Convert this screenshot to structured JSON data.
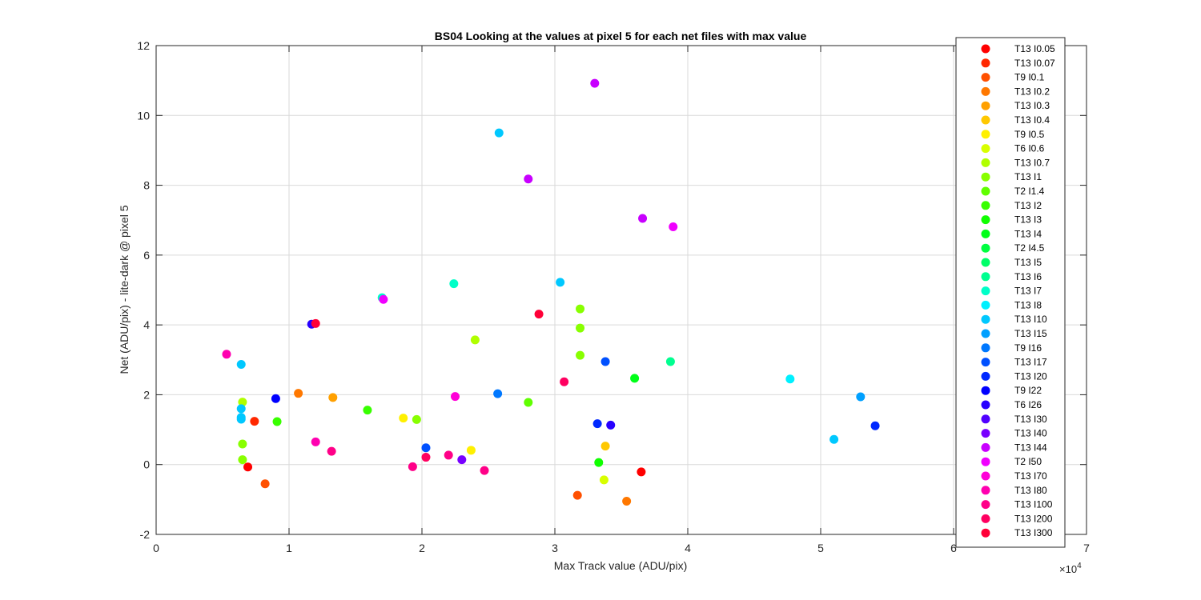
{
  "chart_data": {
    "type": "scatter",
    "title": "BS04  Looking at the values at pixel 5 for each net files with max value",
    "xlabel": "Max Track value (ADU/pix)",
    "ylabel": "Net (ADU/pix) - lite-dark @ pixel 5",
    "x_multiplier_label": "×10",
    "x_multiplier_exp": "4",
    "x_scale": 10000,
    "xlim": [
      0,
      70000
    ],
    "ylim": [
      -2,
      12
    ],
    "x_ticks": [
      0,
      10000,
      20000,
      30000,
      40000,
      50000,
      60000,
      70000
    ],
    "x_tick_labels": [
      "0",
      "1",
      "2",
      "3",
      "4",
      "5",
      "6",
      "7"
    ],
    "y_ticks": [
      -2,
      0,
      2,
      4,
      6,
      8,
      10,
      12
    ],
    "y_tick_labels": [
      "-2",
      "0",
      "2",
      "4",
      "6",
      "8",
      "10",
      "12"
    ],
    "grid": true,
    "legend_position": "right",
    "series": [
      {
        "name": "T13 I0.05",
        "color": "#ff0000",
        "points": [
          [
            6900,
            -0.07
          ],
          [
            36500,
            -0.21
          ]
        ]
      },
      {
        "name": "T13 I0.07",
        "color": "#ff2800",
        "points": [
          [
            7400,
            1.24
          ]
        ]
      },
      {
        "name": "T9 I0.1",
        "color": "#ff5000",
        "points": [
          [
            8200,
            -0.55
          ],
          [
            31700,
            -0.88
          ]
        ]
      },
      {
        "name": "T13 I0.2",
        "color": "#ff7800",
        "points": [
          [
            10700,
            2.04
          ],
          [
            35400,
            -1.05
          ]
        ]
      },
      {
        "name": "T13 I0.3",
        "color": "#ffa000",
        "points": [
          [
            13300,
            1.92
          ]
        ]
      },
      {
        "name": "T13 I0.4",
        "color": "#ffc800",
        "points": [
          [
            33800,
            0.53
          ]
        ]
      },
      {
        "name": "T9 I0.5",
        "color": "#fff000",
        "points": [
          [
            18600,
            1.33
          ],
          [
            23700,
            0.41
          ]
        ]
      },
      {
        "name": "T6 I0.6",
        "color": "#d8ff00",
        "points": [
          [
            33700,
            -0.44
          ]
        ]
      },
      {
        "name": "T13 I0.7",
        "color": "#b0ff00",
        "points": [
          [
            6500,
            1.79
          ],
          [
            24000,
            3.57
          ]
        ]
      },
      {
        "name": "T13 I1",
        "color": "#88ff00",
        "points": [
          [
            6500,
            0.59
          ],
          [
            6500,
            0.14
          ],
          [
            19600,
            1.29
          ],
          [
            31900,
            4.46
          ],
          [
            31900,
            3.91
          ],
          [
            31900,
            3.13
          ]
        ]
      },
      {
        "name": "T2 I1.4",
        "color": "#60ff00",
        "points": [
          [
            28000,
            1.78
          ]
        ]
      },
      {
        "name": "T13 I2",
        "color": "#38ff00",
        "points": [
          [
            9100,
            1.23
          ],
          [
            15900,
            1.56
          ]
        ]
      },
      {
        "name": "T13 I3",
        "color": "#10ff00",
        "points": [
          [
            33300,
            0.06
          ]
        ]
      },
      {
        "name": "T13 I4",
        "color": "#00ff18",
        "points": [
          [
            36000,
            2.47
          ]
        ]
      },
      {
        "name": "T2 I4.5",
        "color": "#00ff40",
        "points": []
      },
      {
        "name": "T13 I5",
        "color": "#00ff68",
        "points": []
      },
      {
        "name": "T13 I6",
        "color": "#00ff90",
        "points": [
          [
            38700,
            2.95
          ]
        ]
      },
      {
        "name": "T13 I7",
        "color": "#00ffc8",
        "points": [
          [
            17000,
            4.78
          ],
          [
            22400,
            5.18
          ]
        ]
      },
      {
        "name": "T13 I8",
        "color": "#00f0ff",
        "points": [
          [
            47700,
            2.45
          ]
        ]
      },
      {
        "name": "T13 I10",
        "color": "#00c8ff",
        "points": [
          [
            6400,
            2.87
          ],
          [
            6400,
            1.6
          ],
          [
            6400,
            1.35
          ],
          [
            6400,
            1.3
          ],
          [
            25800,
            9.5
          ],
          [
            30400,
            5.22
          ],
          [
            51000,
            0.72
          ]
        ]
      },
      {
        "name": "T13 I15",
        "color": "#00a0ff",
        "points": [
          [
            53000,
            1.94
          ]
        ]
      },
      {
        "name": "T9 I16",
        "color": "#0078ff",
        "points": [
          [
            25700,
            2.03
          ]
        ]
      },
      {
        "name": "T13 I17",
        "color": "#0050ff",
        "points": [
          [
            20300,
            0.48
          ],
          [
            33800,
            2.95
          ]
        ]
      },
      {
        "name": "T13 I20",
        "color": "#0028ff",
        "points": [
          [
            33200,
            1.17
          ],
          [
            54100,
            1.11
          ]
        ]
      },
      {
        "name": "T9 I22",
        "color": "#0000ff",
        "points": [
          [
            9000,
            1.89
          ]
        ]
      },
      {
        "name": "T6 I26",
        "color": "#2800ff",
        "points": [
          [
            11700,
            4.02
          ],
          [
            34200,
            1.13
          ]
        ]
      },
      {
        "name": "T13 I30",
        "color": "#5000ff",
        "points": []
      },
      {
        "name": "T13 I40",
        "color": "#7800ff",
        "points": [
          [
            23000,
            0.14
          ]
        ]
      },
      {
        "name": "T13 I44",
        "color": "#c800ff",
        "points": [
          [
            33000,
            10.92
          ],
          [
            28000,
            8.18
          ],
          [
            36600,
            7.05
          ]
        ]
      },
      {
        "name": "T2 I50",
        "color": "#f000ff",
        "points": [
          [
            17100,
            4.73
          ],
          [
            38900,
            6.81
          ]
        ]
      },
      {
        "name": "T13 I70",
        "color": "#ff00d8",
        "points": [
          [
            22500,
            1.95
          ]
        ]
      },
      {
        "name": "T13 I80",
        "color": "#ff00b0",
        "points": [
          [
            12000,
            0.65
          ],
          [
            5300,
            3.16
          ]
        ]
      },
      {
        "name": "T13 I100",
        "color": "#ff0088",
        "points": [
          [
            13200,
            0.38
          ],
          [
            19300,
            -0.06
          ],
          [
            22000,
            0.27
          ],
          [
            24700,
            -0.17
          ]
        ]
      },
      {
        "name": "T13 I200",
        "color": "#ff0060",
        "points": [
          [
            20300,
            0.21
          ],
          [
            30700,
            2.37
          ]
        ]
      },
      {
        "name": "T13 I300",
        "color": "#ff0038",
        "points": [
          [
            12000,
            4.04
          ],
          [
            28800,
            4.31
          ]
        ]
      }
    ]
  }
}
